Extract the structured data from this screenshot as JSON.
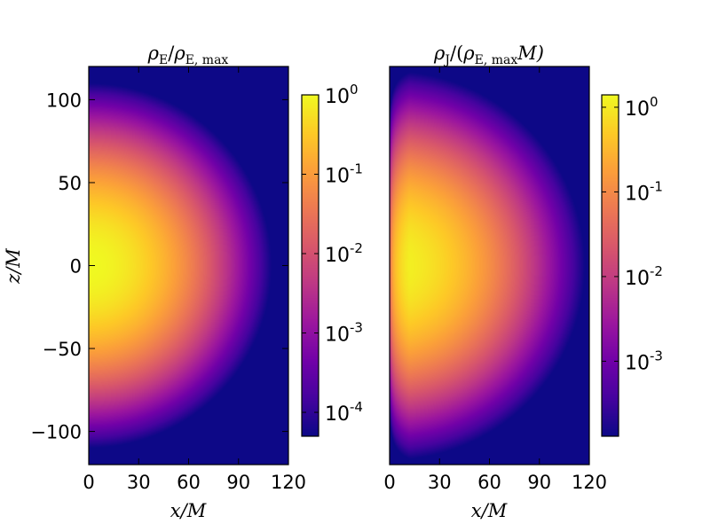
{
  "chart_data": [
    {
      "type": "heatmap",
      "title": "ρE/ρE, max",
      "title_parts": {
        "num": "ρ",
        "num_sub": "E",
        "slash": "/",
        "den": "ρ",
        "den_sub": "E, max"
      },
      "xlabel": "x/M",
      "ylabel": "z/M",
      "xlim": [
        0,
        120
      ],
      "ylim": [
        -120,
        120
      ],
      "xticks": [
        0,
        30,
        60,
        90,
        120
      ],
      "xtick_labels": [
        "0",
        "30",
        "60",
        "90",
        "120"
      ],
      "yticks": [
        100,
        50,
        0,
        -50,
        -100
      ],
      "ytick_labels": [
        "100",
        "50",
        "0",
        "−50",
        "−100"
      ],
      "colormap": "plasma",
      "color_scale": "log",
      "clim": [
        5e-05,
        1
      ],
      "description": "peak at x=0,z=0 decaying radially",
      "colorbar": {
        "ticks": [
          {
            "base": "10",
            "exp": "0",
            "value": 1
          },
          {
            "base": "10",
            "exp": "-1",
            "value": 0.1
          },
          {
            "base": "10",
            "exp": "-2",
            "value": 0.01
          },
          {
            "base": "10",
            "exp": "-3",
            "value": 0.001
          },
          {
            "base": "10",
            "exp": "-4",
            "value": 0.0001
          }
        ]
      }
    },
    {
      "type": "heatmap",
      "title": "ρJ/(ρE, maxM)",
      "title_parts": {
        "num": "ρ",
        "num_sub": "J",
        "slash": "/(",
        "den": "ρ",
        "den_sub": "E, max",
        "den_tail": "M)"
      },
      "xlabel": "x/M",
      "ylabel": "",
      "xlim": [
        0,
        120
      ],
      "ylim": [
        -120,
        120
      ],
      "xticks": [
        0,
        30,
        60,
        90,
        120
      ],
      "xtick_labels": [
        "0",
        "30",
        "60",
        "90",
        "120"
      ],
      "colormap": "plasma",
      "color_scale": "log",
      "clim": [
        0.00013,
        1.4
      ],
      "description": "peak near x≈15,z=0, vanishing on x=0 axis",
      "colorbar": {
        "ticks": [
          {
            "base": "10",
            "exp": "0",
            "value": 1
          },
          {
            "base": "10",
            "exp": "-1",
            "value": 0.1
          },
          {
            "base": "10",
            "exp": "-2",
            "value": 0.01
          },
          {
            "base": "10",
            "exp": "-3",
            "value": 0.001
          }
        ]
      }
    }
  ],
  "colors": {
    "plasma": [
      "#0d0887",
      "#46039f",
      "#7201a8",
      "#9c179e",
      "#bd3786",
      "#d8576b",
      "#ed7953",
      "#fb9f3a",
      "#fdca26",
      "#f0f921"
    ]
  }
}
